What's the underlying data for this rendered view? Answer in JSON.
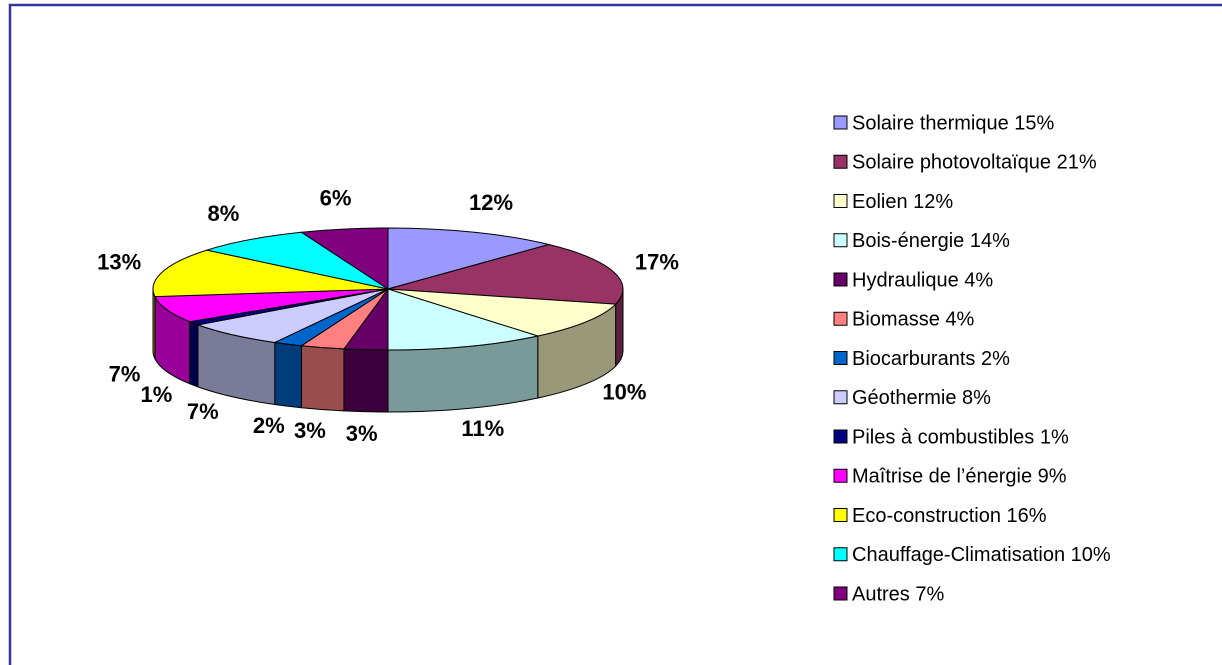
{
  "chart_data": {
    "type": "pie",
    "categories": [
      "Solaire thermique 15%",
      "Solaire photovoltaïque 21%",
      "Eolien 12%",
      "Bois-énergie 14%",
      "Hydraulique 4%",
      "Biomasse 4%",
      "Biocarburants 2%",
      "Géothermie 8%",
      "Piles à combustibles 1%",
      "Maîtrise de l’énergie 9%",
      "Eco-construction 16%",
      "Chauffage-Climatisation 10%",
      "Autres 7%"
    ],
    "values": [
      12,
      17,
      10,
      11,
      3,
      3,
      2,
      7,
      1,
      7,
      13,
      8,
      6
    ],
    "value_labels": [
      "12%",
      "17%",
      "10%",
      "11%",
      "3%",
      "3%",
      "2%",
      "7%",
      "1%",
      "7%",
      "13%",
      "8%",
      "6%"
    ],
    "colors": [
      "#9999ff",
      "#993366",
      "#ffffcc",
      "#ccffff",
      "#660066",
      "#ff8080",
      "#0066cc",
      "#ccccff",
      "#000080",
      "#ff00ff",
      "#ffff00",
      "#00ffff",
      "#800080"
    ],
    "legend": "right"
  }
}
